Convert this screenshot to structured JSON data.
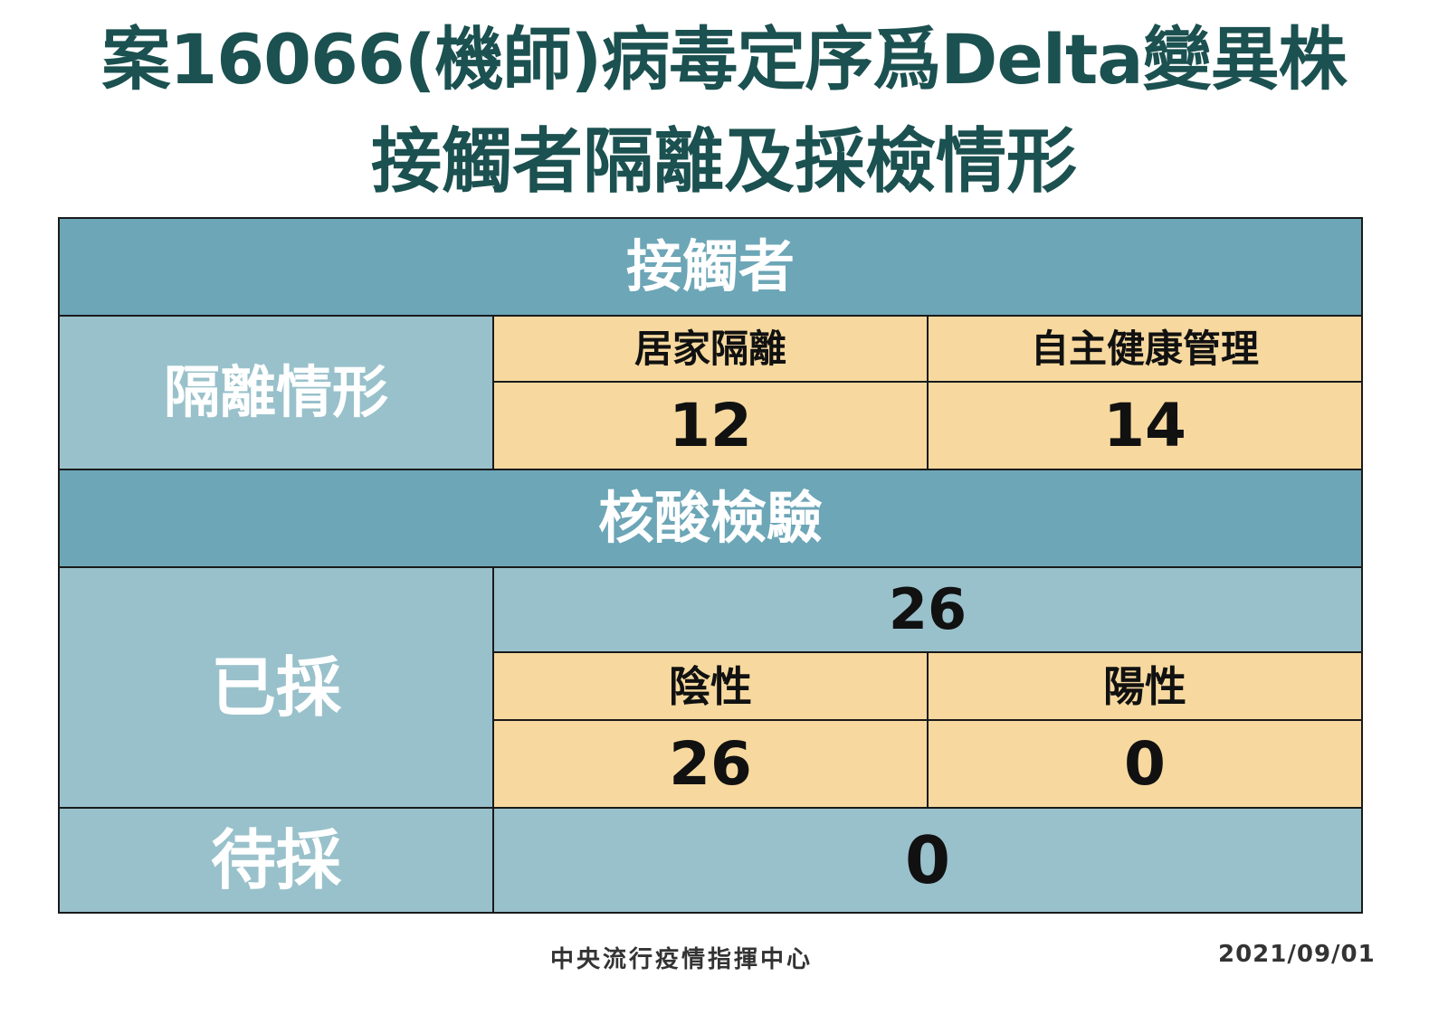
{
  "title": {
    "line1": "案16066(機師)病毒定序爲Delta變異株",
    "line2": "接觸者隔離及採檢情形"
  },
  "table": {
    "contacts_header": "接觸者",
    "isolation": {
      "label": "隔離情形",
      "home_isolation_label": "居家隔離",
      "self_health_label": "自主健康管理",
      "home_isolation_value": "12",
      "self_health_value": "14"
    },
    "pcr_header": "核酸檢驗",
    "sampled": {
      "label": "已採",
      "total": "26",
      "negative_label": "陰性",
      "positive_label": "陽性",
      "negative_value": "26",
      "positive_value": "0"
    },
    "pending": {
      "label": "待採",
      "value": "0"
    }
  },
  "footer": {
    "agency": "中央流行疫情指揮中心",
    "date": "2021/09/01"
  },
  "colors": {
    "title_text": "#1b5150",
    "header_teal": "#6ca6b7",
    "light_teal": "#99c1cb",
    "peach": "#f7d99f"
  }
}
